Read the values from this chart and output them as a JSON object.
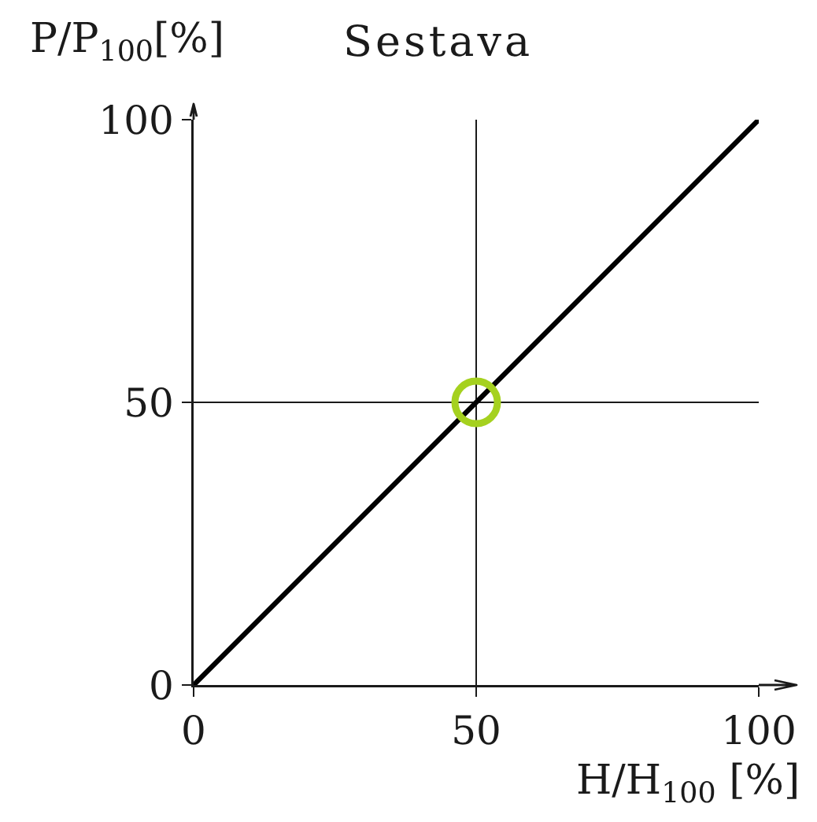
{
  "chart_data": {
    "type": "line",
    "title": "Sestava",
    "xlabel": "H/H$_{100}$ [%]",
    "ylabel": "P/P$_{100}$[%]",
    "xlim": [
      0,
      100
    ],
    "ylim": [
      0,
      100
    ],
    "xticks": [
      0,
      50,
      100
    ],
    "yticks": [
      0,
      50,
      100
    ],
    "grid": true,
    "series": [
      {
        "color": "#000000",
        "x": [
          0,
          100
        ],
        "values": [
          0,
          100
        ]
      },
      {
        "type": "scatter",
        "color": "#a5d11f",
        "x": [
          50
        ],
        "values": [
          50
        ]
      }
    ]
  }
}
